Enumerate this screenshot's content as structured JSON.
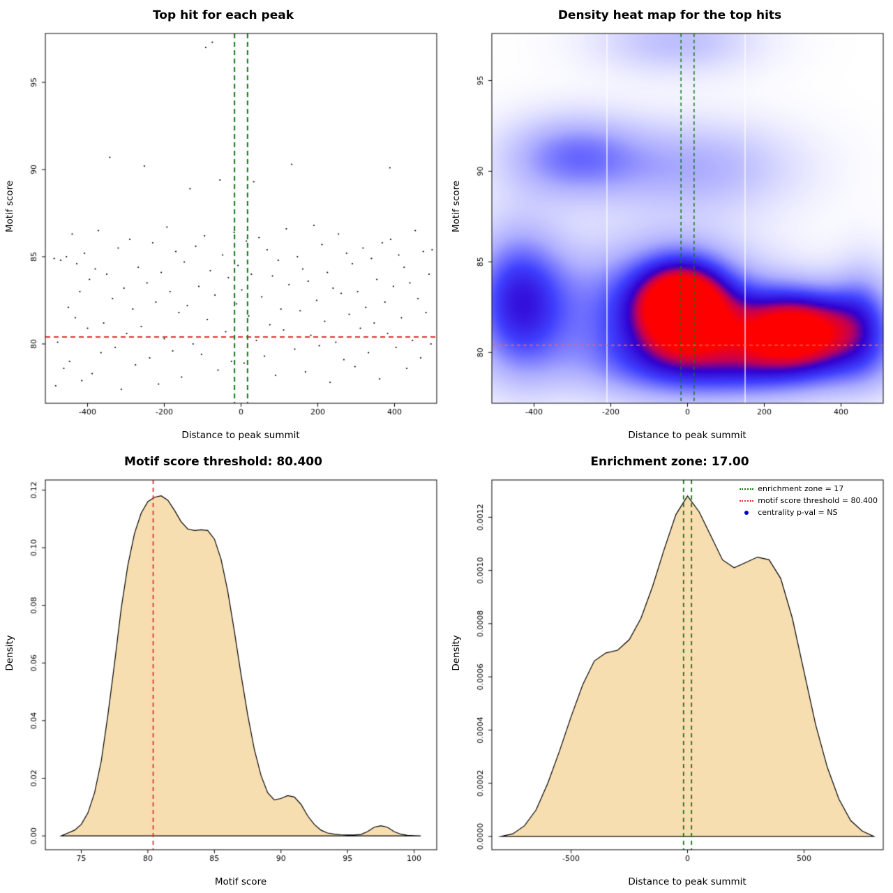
{
  "colors": {
    "threshold_red": "#e03131",
    "zone_green": "#117711",
    "heat_hline": "#ff6347",
    "density_fill": "#f7deb0",
    "legend_dot_blue": "#0000cd",
    "points_black": "#000000"
  },
  "chart_data": [
    {
      "type": "scatter",
      "title": "Top hit for each peak",
      "xlabel": "Distance to peak summit",
      "ylabel": "Motif score",
      "xlim": [
        -510,
        510
      ],
      "ylim": [
        76.6,
        97.8
      ],
      "xticks": [
        -400,
        -200,
        0,
        200,
        400
      ],
      "xtick_labels": [
        "-400",
        "-200",
        "0",
        "200",
        "400"
      ],
      "yticks": [
        80,
        85,
        90,
        95
      ],
      "ytick_labels": [
        "80",
        "85",
        "90",
        "95"
      ],
      "hline": {
        "value": 80.4,
        "color": "#e03131",
        "width": 2,
        "dash": [
          7,
          5
        ]
      },
      "vlines": {
        "values": [
          -17,
          17
        ],
        "color": "#117711",
        "width": 2,
        "dash": [
          7,
          5
        ]
      },
      "points": [
        [
          -487,
          84.9
        ],
        [
          -483,
          77.6
        ],
        [
          -478,
          80.1
        ],
        [
          -470,
          84.8
        ],
        [
          -462,
          78.6
        ],
        [
          -455,
          85.0
        ],
        [
          -450,
          82.1
        ],
        [
          -447,
          79.0
        ],
        [
          -440,
          86.3
        ],
        [
          -432,
          81.5
        ],
        [
          -428,
          84.6
        ],
        [
          -420,
          83.0
        ],
        [
          -415,
          77.9
        ],
        [
          -408,
          85.2
        ],
        [
          -400,
          80.9
        ],
        [
          -395,
          83.7
        ],
        [
          -388,
          78.3
        ],
        [
          -380,
          84.3
        ],
        [
          -372,
          86.5
        ],
        [
          -365,
          79.5
        ],
        [
          -358,
          81.2
        ],
        [
          -350,
          84.0
        ],
        [
          -342,
          90.7
        ],
        [
          -335,
          82.6
        ],
        [
          -328,
          79.8
        ],
        [
          -320,
          85.5
        ],
        [
          -312,
          77.4
        ],
        [
          -305,
          83.2
        ],
        [
          -298,
          80.6
        ],
        [
          -290,
          86.0
        ],
        [
          -282,
          82.0
        ],
        [
          -275,
          78.8
        ],
        [
          -268,
          84.4
        ],
        [
          -260,
          81.0
        ],
        [
          -252,
          90.2
        ],
        [
          -245,
          83.5
        ],
        [
          -238,
          79.2
        ],
        [
          -230,
          85.8
        ],
        [
          -222,
          82.4
        ],
        [
          -215,
          77.7
        ],
        [
          -208,
          84.1
        ],
        [
          -200,
          80.3
        ],
        [
          -193,
          86.7
        ],
        [
          -185,
          83.0
        ],
        [
          -178,
          79.6
        ],
        [
          -170,
          85.3
        ],
        [
          -162,
          81.8
        ],
        [
          -155,
          78.1
        ],
        [
          -148,
          84.7
        ],
        [
          -140,
          82.2
        ],
        [
          -133,
          88.9
        ],
        [
          -125,
          80.0
        ],
        [
          -118,
          85.6
        ],
        [
          -110,
          83.3
        ],
        [
          -103,
          79.4
        ],
        [
          -95,
          86.2
        ],
        [
          -92,
          97.0
        ],
        [
          -88,
          81.4
        ],
        [
          -80,
          84.2
        ],
        [
          -75,
          97.3
        ],
        [
          -68,
          82.8
        ],
        [
          -60,
          78.5
        ],
        [
          -55,
          89.4
        ],
        [
          -48,
          85.1
        ],
        [
          -40,
          80.7
        ],
        [
          -33,
          83.8
        ],
        [
          -25,
          79.0
        ],
        [
          -18,
          86.4
        ],
        [
          -12,
          82.3
        ],
        [
          -8,
          84.5
        ],
        [
          -3,
          80.4
        ],
        [
          2,
          83.1
        ],
        [
          8,
          78.9
        ],
        [
          14,
          85.9
        ],
        [
          20,
          81.6
        ],
        [
          27,
          84.0
        ],
        [
          33,
          89.3
        ],
        [
          40,
          80.2
        ],
        [
          47,
          86.1
        ],
        [
          54,
          82.7
        ],
        [
          61,
          79.3
        ],
        [
          68,
          85.4
        ],
        [
          75,
          81.1
        ],
        [
          82,
          83.9
        ],
        [
          90,
          78.2
        ],
        [
          97,
          84.8
        ],
        [
          104,
          82.0
        ],
        [
          111,
          80.8
        ],
        [
          118,
          86.6
        ],
        [
          125,
          83.4
        ],
        [
          132,
          90.3
        ],
        [
          140,
          79.7
        ],
        [
          147,
          85.0
        ],
        [
          154,
          81.9
        ],
        [
          161,
          84.3
        ],
        [
          168,
          78.4
        ],
        [
          175,
          83.6
        ],
        [
          182,
          80.5
        ],
        [
          190,
          86.8
        ],
        [
          197,
          82.5
        ],
        [
          204,
          79.9
        ],
        [
          211,
          85.7
        ],
        [
          218,
          81.3
        ],
        [
          225,
          84.1
        ],
        [
          232,
          77.8
        ],
        [
          240,
          83.2
        ],
        [
          247,
          80.1
        ],
        [
          254,
          86.3
        ],
        [
          261,
          82.9
        ],
        [
          268,
          79.1
        ],
        [
          275,
          85.2
        ],
        [
          282,
          81.7
        ],
        [
          290,
          84.6
        ],
        [
          297,
          78.7
        ],
        [
          304,
          83.0
        ],
        [
          311,
          80.9
        ],
        [
          318,
          85.5
        ],
        [
          325,
          82.1
        ],
        [
          332,
          79.5
        ],
        [
          340,
          84.9
        ],
        [
          347,
          81.2
        ],
        [
          354,
          83.7
        ],
        [
          361,
          78.0
        ],
        [
          368,
          85.8
        ],
        [
          375,
          82.4
        ],
        [
          382,
          80.6
        ],
        [
          388,
          90.1
        ],
        [
          390,
          86.0
        ],
        [
          397,
          83.3
        ],
        [
          404,
          79.8
        ],
        [
          411,
          85.1
        ],
        [
          418,
          81.5
        ],
        [
          425,
          84.4
        ],
        [
          432,
          78.6
        ],
        [
          440,
          83.5
        ],
        [
          447,
          80.2
        ],
        [
          454,
          86.5
        ],
        [
          461,
          82.6
        ],
        [
          468,
          79.2
        ],
        [
          475,
          85.3
        ],
        [
          482,
          81.8
        ],
        [
          490,
          84.0
        ],
        [
          495,
          80.0
        ],
        [
          498,
          85.4
        ]
      ]
    },
    {
      "type": "heatmap",
      "title": "Density heat map for the top hits",
      "xlabel": "Distance to peak summit",
      "ylabel": "Motif score",
      "xlim": [
        -510,
        510
      ],
      "ylim": [
        77.2,
        97.6
      ],
      "xticks": [
        -400,
        -200,
        0,
        200,
        400
      ],
      "xtick_labels": [
        "-400",
        "-200",
        "0",
        "200",
        "400"
      ],
      "yticks": [
        80,
        85,
        90,
        95
      ],
      "ytick_labels": [
        "80",
        "85",
        "90",
        "95"
      ],
      "hline": {
        "value": 80.4,
        "color": "#ff6347",
        "width": 1.5,
        "dash": [
          5,
          4
        ]
      },
      "vlines": {
        "values": [
          -17,
          17
        ],
        "color": "#117711",
        "width": 1.5,
        "dash": [
          5,
          4
        ]
      },
      "white_vlines": [
        -210,
        150
      ],
      "kernels": [
        {
          "x": -60,
          "y": 82.3,
          "sx": 180,
          "sy": 2.6,
          "a": 0.6
        },
        {
          "x": -10,
          "y": 82.6,
          "sx": 80,
          "sy": 1.6,
          "a": 0.88
        },
        {
          "x": 290,
          "y": 81.4,
          "sx": 120,
          "sy": 1.5,
          "a": 0.95
        },
        {
          "x": 460,
          "y": 82.0,
          "sx": 60,
          "sy": 2.2,
          "a": 0.3
        },
        {
          "x": -440,
          "y": 82.8,
          "sx": 90,
          "sy": 2.8,
          "a": 0.6
        },
        {
          "x": -300,
          "y": 90.8,
          "sx": 130,
          "sy": 1.6,
          "a": 0.38
        },
        {
          "x": 30,
          "y": 90.2,
          "sx": 180,
          "sy": 1.8,
          "a": 0.26
        },
        {
          "x": -30,
          "y": 97.2,
          "sx": 150,
          "sy": 1.3,
          "a": 0.22
        },
        {
          "x": 150,
          "y": 79.3,
          "sx": 260,
          "sy": 1.4,
          "a": 0.45
        }
      ]
    },
    {
      "type": "area",
      "title": "Motif score threshold: 80.400",
      "xlabel": "Motif score",
      "ylabel": "Density",
      "xlim": [
        72.3,
        101.7
      ],
      "ylim": [
        -0.0048,
        0.1235
      ],
      "xticks": [
        75,
        80,
        85,
        90,
        95,
        100
      ],
      "xtick_labels": [
        "75",
        "80",
        "85",
        "90",
        "95",
        "100"
      ],
      "yticks": [
        0,
        0.02,
        0.04,
        0.06,
        0.08,
        0.1,
        0.12
      ],
      "ytick_labels": [
        "0.00",
        "0.02",
        "0.04",
        "0.06",
        "0.08",
        "0.10",
        "0.12"
      ],
      "vlines": {
        "values": [
          80.4
        ],
        "color": "#e03131",
        "width": 1.8,
        "dash": [
          6,
          5
        ]
      },
      "fill": "#f7deb0",
      "x": [
        73.5,
        74,
        74.5,
        75,
        75.5,
        76,
        76.5,
        77,
        77.5,
        78,
        78.5,
        79,
        79.5,
        80,
        80.5,
        81,
        81.5,
        82,
        82.5,
        83,
        83.5,
        84,
        84.5,
        85,
        85.5,
        86,
        86.5,
        87,
        87.5,
        88,
        88.5,
        89,
        89.5,
        90,
        90.5,
        91,
        91.5,
        92,
        92.5,
        93,
        93.5,
        94,
        94.5,
        95,
        95.5,
        96,
        96.5,
        97,
        97.5,
        98,
        98.5,
        99,
        99.5,
        100,
        100.5
      ],
      "y": [
        0,
        0.001,
        0.002,
        0.004,
        0.008,
        0.015,
        0.026,
        0.042,
        0.06,
        0.079,
        0.094,
        0.105,
        0.112,
        0.116,
        0.1175,
        0.118,
        0.1165,
        0.113,
        0.109,
        0.1065,
        0.106,
        0.1062,
        0.106,
        0.103,
        0.096,
        0.085,
        0.071,
        0.056,
        0.042,
        0.03,
        0.021,
        0.015,
        0.0125,
        0.013,
        0.014,
        0.0135,
        0.011,
        0.007,
        0.004,
        0.002,
        0.001,
        0.0006,
        0.0004,
        0.0003,
        0.0003,
        0.0005,
        0.0015,
        0.003,
        0.0035,
        0.003,
        0.0015,
        0.0006,
        0.0002,
        0.0001,
        0
      ]
    },
    {
      "type": "area",
      "title": "Enrichment zone: 17.00",
      "xlabel": "Distance to peak summit",
      "ylabel": "Density",
      "xlim": [
        -840,
        840
      ],
      "ylim": [
        -5e-05,
        0.00134
      ],
      "xticks": [
        -500,
        0,
        500
      ],
      "xtick_labels": [
        "-500",
        "0",
        "500"
      ],
      "yticks": [
        0,
        0.0002,
        0.0004,
        0.0006,
        0.0008,
        0.001,
        0.0012
      ],
      "ytick_labels": [
        "0.0000",
        "0.0002",
        "0.0004",
        "0.0006",
        "0.0008",
        "0.0010",
        "0.0012"
      ],
      "vlines": {
        "values": [
          -17,
          17
        ],
        "color": "#117711",
        "width": 1.8,
        "dash": [
          6,
          5
        ]
      },
      "fill": "#f7deb0",
      "x": [
        -800,
        -750,
        -700,
        -650,
        -600,
        -550,
        -500,
        -450,
        -400,
        -350,
        -300,
        -250,
        -200,
        -150,
        -100,
        -50,
        0,
        50,
        100,
        150,
        200,
        250,
        300,
        350,
        400,
        450,
        500,
        550,
        600,
        650,
        700,
        750,
        800
      ],
      "y": [
        0,
        1e-05,
        4e-05,
        0.0001,
        0.0002,
        0.00032,
        0.00045,
        0.00057,
        0.00066,
        0.00069,
        0.0007,
        0.00074,
        0.00082,
        0.00094,
        0.00108,
        0.00121,
        0.00128,
        0.00122,
        0.00113,
        0.00104,
        0.00101,
        0.00103,
        0.00105,
        0.00104,
        0.00097,
        0.00082,
        0.00062,
        0.00042,
        0.00026,
        0.00014,
        6e-05,
        2e-05,
        0
      ],
      "legend": [
        {
          "label": "enrichment zone = 17",
          "color": "#117711",
          "marker": "dotted-line"
        },
        {
          "label": "motif score threshold = 80.400",
          "color": "#e03131",
          "marker": "dotted-line"
        },
        {
          "label": "centrality p-val = NS",
          "color": "#0000cd",
          "marker": "dot"
        }
      ]
    }
  ]
}
